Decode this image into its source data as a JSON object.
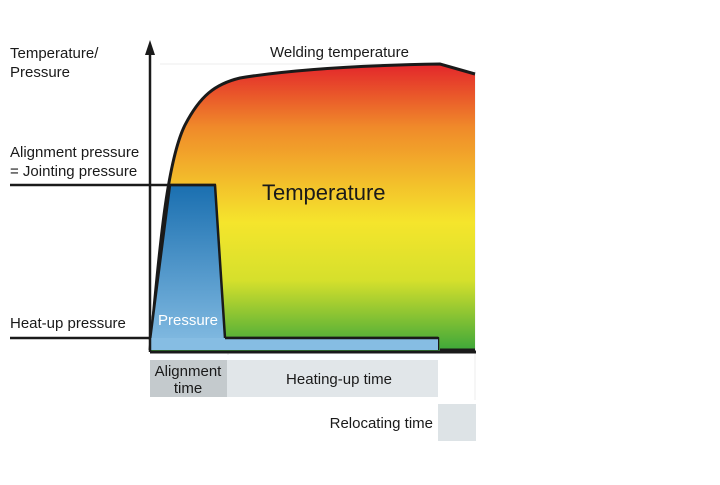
{
  "axis": {
    "y_label_line1": "Temperature/",
    "y_label_line2": "Pressure"
  },
  "labels": {
    "welding_temperature": "Welding temperature",
    "alignment_pressure_line1": "Alignment pressure",
    "alignment_pressure_line2": "= Jointing pressure",
    "heat_up_pressure": "Heat-up pressure",
    "temperature": "Temperature",
    "pressure": "Pressure"
  },
  "phases": {
    "alignment_time_line1": "Alignment",
    "alignment_time_line2": "time",
    "heating_up_time": "Heating-up time",
    "relocating_time": "Relocating time"
  },
  "colors": {
    "temp_hot": "#e3262b",
    "temp_mid": "#f2e62a",
    "temp_cool": "#3aa63a",
    "pressure_dark": "#1a6fb0",
    "pressure_light": "#7fb4dd",
    "alignment_box": "#c4cacd",
    "heating_box": "#e1e6e9",
    "relocating_box": "#dde3e6"
  }
}
